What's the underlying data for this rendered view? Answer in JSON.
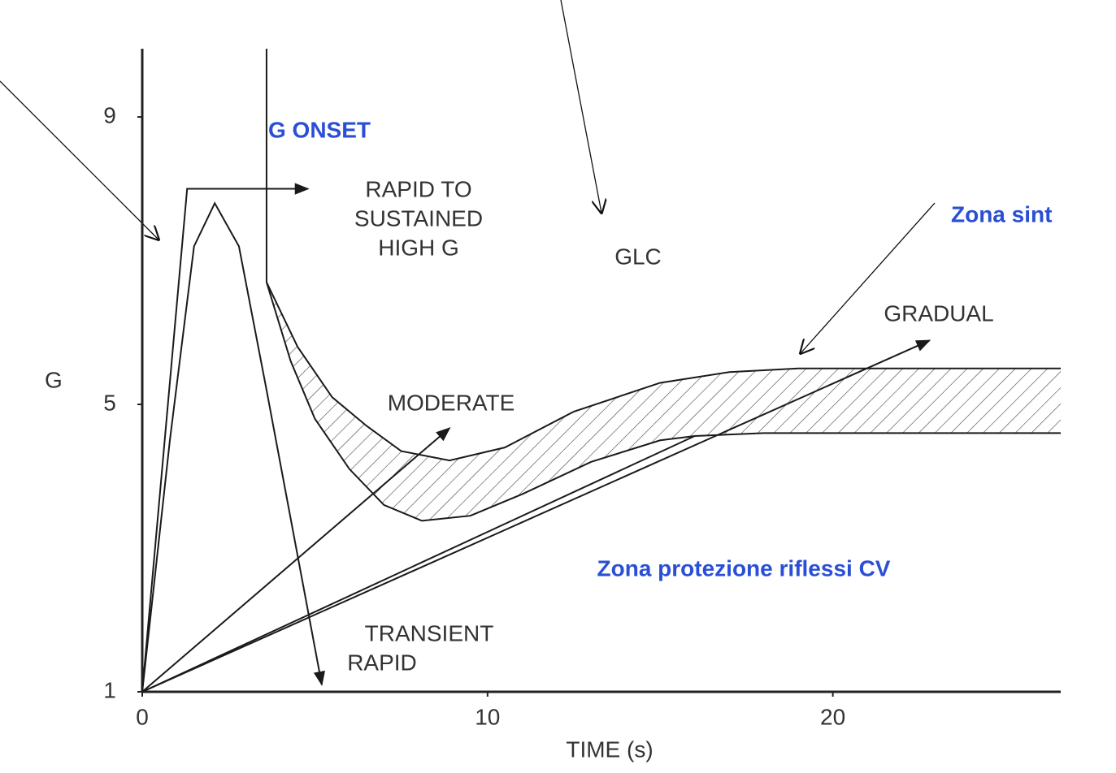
{
  "chart_data": {
    "type": "line",
    "ylabel": "G",
    "xlabel": "TIME (s)",
    "xlim": [
      0,
      26.6
    ],
    "ylim": [
      1,
      9.95
    ],
    "xticks": [
      0,
      10,
      20
    ],
    "yticks": [
      1,
      5,
      9
    ],
    "color": "#1a1a1a",
    "hatch": true,
    "series": [
      {
        "x": [
          0,
          1.3,
          4.8
        ],
        "values": [
          1,
          8,
          8
        ],
        "arrow": true
      },
      {
        "x": [
          0,
          0.8,
          1.5,
          2.1,
          2.8,
          3.6,
          5.2
        ],
        "values": [
          1,
          4.5,
          7.2,
          7.8,
          7.2,
          5.2,
          1.1
        ],
        "arrow": true
      },
      {
        "x": [
          3.6,
          3.6
        ],
        "values": [
          9.95,
          6.7
        ]
      },
      {
        "x": [
          3.6,
          4.5,
          5.5,
          6.5,
          7.5,
          8.9,
          10.5,
          12.5,
          15,
          17,
          19,
          22,
          26.6
        ],
        "values": [
          6.7,
          5.8,
          5.1,
          4.7,
          4.35,
          4.22,
          4.4,
          4.9,
          5.3,
          5.45,
          5.5,
          5.5,
          5.5
        ],
        "series_role": "upper"
      },
      {
        "x": [
          3.6,
          4.3,
          5,
          6,
          7,
          8.1,
          9.5,
          11,
          13,
          15,
          16,
          18,
          22,
          26.6
        ],
        "values": [
          6.7,
          5.6,
          4.8,
          4.1,
          3.6,
          3.38,
          3.45,
          3.75,
          4.2,
          4.5,
          4.56,
          4.6,
          4.6,
          4.6
        ],
        "series_role": "lower"
      },
      {
        "x": [
          0,
          8.9
        ],
        "values": [
          1,
          4.67
        ],
        "arrow": true
      },
      {
        "x": [
          0,
          22.8
        ],
        "values": [
          1,
          5.89
        ],
        "arrow": true
      },
      {
        "x": [
          0,
          16
        ],
        "values": [
          1,
          4.56
        ]
      }
    ],
    "annotations": [
      "G ONSET",
      "RAPID TO",
      "SUSTAINED",
      "HIGH G",
      "GLC",
      "GRADUAL",
      "MODERATE",
      "TRANSIENT",
      "RAPID",
      "Zona sint",
      "Zona protezione riflessi CV"
    ]
  }
}
